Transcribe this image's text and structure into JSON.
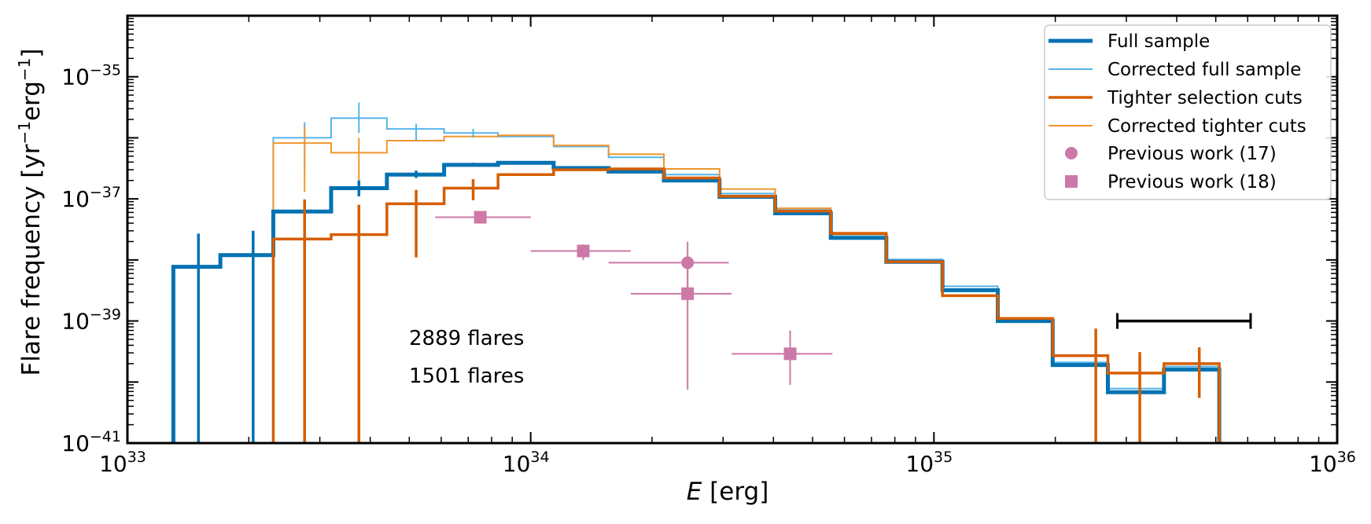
{
  "chart_data": {
    "type": "line",
    "xscale": "log",
    "yscale": "log",
    "xlabel_italic": "E",
    "xlabel_unit": "[erg]",
    "ylabel_prefix": "Flare  frequency [yr",
    "ylabel_mid": "erg",
    "ylabel_suffix": "]",
    "ylabel_exp": "−1",
    "xlim": [
      1e+33,
      1e+36
    ],
    "ylim": [
      1e-41,
      1e-34
    ],
    "x_ticks": [
      {
        "base": "10",
        "exp": "33",
        "value": 1e+33
      },
      {
        "base": "10",
        "exp": "34",
        "value": 1e+34
      },
      {
        "base": "10",
        "exp": "35",
        "value": 1e+35
      },
      {
        "base": "10",
        "exp": "36",
        "value": 1e+36
      }
    ],
    "y_ticks": [
      {
        "base": "10",
        "exp": "−41",
        "value": 1e-41
      },
      {
        "base": "10",
        "exp": "−39",
        "value": 1e-39
      },
      {
        "base": "10",
        "exp": "−37",
        "value": 1e-37
      },
      {
        "base": "10",
        "exp": "−35",
        "value": 1e-35
      }
    ],
    "series": [
      {
        "name": "Full sample",
        "color": "#0072B2",
        "style": "thick-step",
        "bin_edges": [
          1.3e+33,
          1.7e+33,
          2.3e+33,
          3.2e+33,
          4.4e+33,
          6.1e+33,
          8.3e+33,
          1.14e+34,
          1.56e+34,
          2.14e+34,
          2.94e+34,
          4.04e+34,
          5.55e+34,
          7.62e+34,
          1.05e+35,
          1.44e+35,
          1.97e+35,
          2.7e+35,
          3.72e+35,
          5.1e+35
        ],
        "values": [
          7.7e-39,
          1.2e-38,
          6.2e-38,
          1.5e-37,
          2.5e-37,
          3.6e-37,
          3.9e-37,
          3.2e-37,
          2.8e-37,
          2e-37,
          1.08e-37,
          5.8e-38,
          2.3e-38,
          9.3e-39,
          3.2e-39,
          1e-39,
          1.9e-40,
          6.8e-41,
          1.6e-40
        ],
        "error_bars": [
          {
            "x": 1.5e+33,
            "lo": 1e-41,
            "hi": 2.7e-38
          },
          {
            "x": 2.05e+33,
            "lo": 1e-41,
            "hi": 3e-38
          },
          {
            "x": 2.75e+33,
            "lo": 1e-41,
            "hi": 9.5e-38
          },
          {
            "x": 3.75e+33,
            "lo": 1.1e-37,
            "hi": 2e-37
          },
          {
            "x": 5.2e+33,
            "lo": 2.2e-37,
            "hi": 2.9e-37
          },
          {
            "x": 7.2e+33,
            "lo": 3.4e-37,
            "hi": 3.9e-37
          }
        ]
      },
      {
        "name": "Corrected full sample",
        "color": "#56B4E9",
        "style": "thin-step",
        "bin_edges": [
          2.3e+33,
          3.2e+33,
          4.4e+33,
          6.1e+33,
          8.3e+33,
          1.14e+34,
          1.56e+34,
          2.14e+34,
          2.94e+34,
          4.04e+34,
          5.55e+34,
          7.62e+34,
          1.05e+35,
          1.44e+35,
          1.97e+35,
          2.7e+35,
          3.72e+35,
          5.1e+35
        ],
        "values": [
          1e-36,
          2.1e-36,
          1.4e-36,
          1.2e-36,
          1.05e-36,
          7.2e-37,
          4.8e-37,
          2.5e-37,
          1.22e-37,
          6.6e-38,
          2.6e-38,
          1.02e-38,
          3.7e-39,
          1.1e-39,
          2.1e-40,
          7.8e-41,
          1.8e-40
        ],
        "error_bars": [
          {
            "x": 2.75e+33,
            "lo": 3e-37,
            "hi": 1.8e-36
          },
          {
            "x": 3.75e+33,
            "lo": 1.2e-36,
            "hi": 3.8e-36
          },
          {
            "x": 5.2e+33,
            "lo": 9e-37,
            "hi": 1.7e-36
          },
          {
            "x": 7.2e+33,
            "lo": 1e-36,
            "hi": 1.4e-36
          }
        ]
      },
      {
        "name": "Tighter selection cuts",
        "color": "#D55E00",
        "style": "step",
        "bin_edges": [
          2.3e+33,
          3.2e+33,
          4.4e+33,
          6.1e+33,
          8.3e+33,
          1.14e+34,
          1.56e+34,
          2.14e+34,
          2.94e+34,
          4.04e+34,
          5.55e+34,
          7.62e+34,
          1.05e+35,
          1.44e+35,
          1.97e+35,
          2.7e+35,
          3.72e+35,
          5.1e+35
        ],
        "values": [
          2.2e-38,
          2.6e-38,
          8.3e-38,
          1.5e-37,
          2.5e-37,
          3e-37,
          3.1e-37,
          2.2e-37,
          1.1e-37,
          6.3e-38,
          2.7e-38,
          9.3e-39,
          2.6e-39,
          1.1e-39,
          2.7e-40,
          1.4e-40,
          2e-40
        ],
        "error_bars": [
          {
            "x": 2.75e+33,
            "lo": 1e-41,
            "hi": 9.8e-38
          },
          {
            "x": 3.75e+33,
            "lo": 1e-41,
            "hi": 8e-38
          },
          {
            "x": 5.2e+33,
            "lo": 1.1e-38,
            "hi": 1.4e-37
          },
          {
            "x": 7.2e+33,
            "lo": 9.5e-38,
            "hi": 2.1e-37
          },
          {
            "x": 2.52e+35,
            "lo": 1e-41,
            "hi": 7.5e-40
          },
          {
            "x": 3.24e+35,
            "lo": 1e-41,
            "hi": 3.1e-40
          },
          {
            "x": 4.55e+35,
            "lo": 5.5e-41,
            "hi": 3.7e-40
          }
        ]
      },
      {
        "name": "Corrected tighter cuts",
        "color": "#F0962E",
        "style": "thin-step",
        "bin_edges": [
          2.3e+33,
          3.2e+33,
          4.4e+33,
          6.1e+33,
          8.3e+33,
          1.14e+34,
          1.56e+34,
          2.14e+34,
          2.94e+34,
          4.04e+34,
          5.55e+34,
          7.62e+34,
          1.05e+35,
          1.44e+35,
          1.97e+35,
          2.7e+35,
          3.72e+35,
          5.1e+35
        ],
        "values": [
          8.2e-37,
          5.7e-37,
          9e-37,
          1.05e-36,
          1.1e-36,
          7.5e-37,
          5.4e-37,
          3.1e-37,
          1.45e-37,
          7e-38,
          2.8e-38,
          9.5e-39,
          2.6e-39,
          1.1e-39,
          2.7e-40,
          1.4e-40,
          2e-40
        ],
        "error_bars": [
          {
            "x": 2.75e+33,
            "lo": 1.3e-37,
            "hi": 1.5e-36
          },
          {
            "x": 3.75e+33,
            "lo": 2e-37,
            "hi": 1e-36
          }
        ]
      },
      {
        "name": "Previous work (17)",
        "color": "#CC79A7",
        "style": "marker-circle",
        "points": [
          {
            "x": 2.45e+34,
            "y": 9e-39,
            "xlo": 1.56e+34,
            "xhi": 3.1e+34,
            "ylo": 3.5e-39,
            "yhi": 2e-38
          }
        ]
      },
      {
        "name": "Previous work (18)",
        "color": "#CC79A7",
        "style": "marker-square",
        "points": [
          {
            "x": 7.5e+33,
            "y": 5e-38,
            "xlo": 5.8e+33,
            "xhi": 1e+34,
            "ylo": 4.6e-38,
            "yhi": 5.4e-38
          },
          {
            "x": 1.35e+34,
            "y": 1.4e-38,
            "xlo": 1e+34,
            "xhi": 1.77e+34,
            "ylo": 1e-38,
            "yhi": 1.8e-38
          },
          {
            "x": 2.45e+34,
            "y": 2.8e-39,
            "xlo": 1.77e+34,
            "xhi": 3.15e+34,
            "ylo": 7.5e-41,
            "yhi": 1e-38
          },
          {
            "x": 4.4e+34,
            "y": 2.9e-40,
            "xlo": 3.15e+34,
            "xhi": 5.6e+34,
            "ylo": 9e-41,
            "yhi": 7e-40
          }
        ]
      }
    ],
    "scale_bar": {
      "x_start": 2.85e+35,
      "x_end": 6.1e+35,
      "y": 1e-39,
      "color": "#000000"
    },
    "annotations": [
      {
        "text": "2889 flares",
        "color": "#0072B2"
      },
      {
        "text": "1501 flares",
        "color": "#D55E00"
      }
    ],
    "legend_position": "top-right"
  }
}
